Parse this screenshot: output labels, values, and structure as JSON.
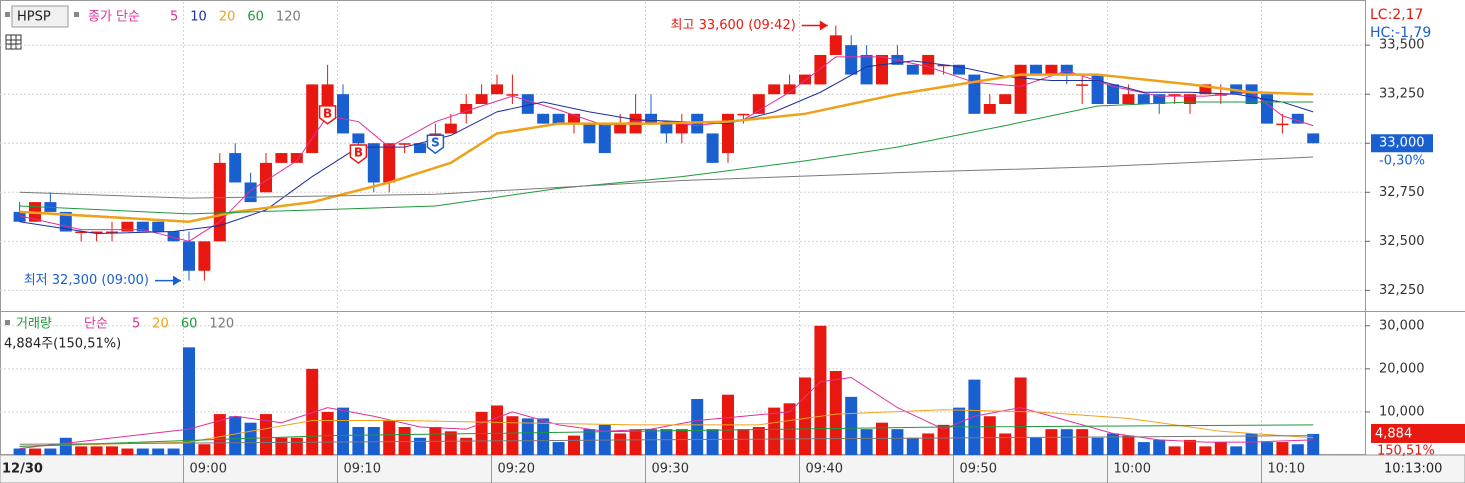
{
  "chart_data": [
    {
      "type": "candlestick",
      "title": "HPSP",
      "indicator": "종가 단순",
      "up_color": "#e8170f",
      "down_color": "#1a5fd0",
      "candles": [
        [
          32650,
          32700,
          32600,
          32600
        ],
        [
          32600,
          32700,
          32600,
          32700
        ],
        [
          32700,
          32750,
          32650,
          32650
        ],
        [
          32650,
          32650,
          32550,
          32550
        ],
        [
          32550,
          32550,
          32500,
          32550
        ],
        [
          32550,
          32550,
          32500,
          32550
        ],
        [
          32550,
          32600,
          32500,
          32550
        ],
        [
          32550,
          32600,
          32550,
          32600
        ],
        [
          32600,
          32600,
          32550,
          32550
        ],
        [
          32600,
          32600,
          32550,
          32550
        ],
        [
          32550,
          32550,
          32500,
          32500
        ],
        [
          32500,
          32550,
          32300,
          32350
        ],
        [
          32350,
          32500,
          32300,
          32500
        ],
        [
          32500,
          32950,
          32500,
          32900
        ],
        [
          32950,
          33000,
          32800,
          32800
        ],
        [
          32800,
          32850,
          32700,
          32700
        ],
        [
          32750,
          32950,
          32750,
          32900
        ],
        [
          32900,
          32950,
          32900,
          32950
        ],
        [
          32900,
          32950,
          32900,
          32950
        ],
        [
          32950,
          33300,
          32950,
          33300
        ],
        [
          33150,
          33400,
          33150,
          33300
        ],
        [
          33250,
          33300,
          33050,
          33050
        ],
        [
          33050,
          33050,
          32950,
          33000
        ],
        [
          33000,
          33000,
          32750,
          32800
        ],
        [
          32800,
          33000,
          32750,
          33000
        ],
        [
          33000,
          33000,
          32950,
          33000
        ],
        [
          33000,
          33000,
          32950,
          32950
        ],
        [
          33000,
          33100,
          33000,
          33050
        ],
        [
          33050,
          33150,
          33050,
          33100
        ],
        [
          33150,
          33250,
          33100,
          33200
        ],
        [
          33200,
          33300,
          33200,
          33250
        ],
        [
          33250,
          33350,
          33250,
          33300
        ],
        [
          33250,
          33350,
          33200,
          33250
        ],
        [
          33250,
          33250,
          33150,
          33150
        ],
        [
          33150,
          33150,
          33100,
          33100
        ],
        [
          33150,
          33150,
          33100,
          33100
        ],
        [
          33100,
          33150,
          33050,
          33150
        ],
        [
          33100,
          33100,
          33000,
          33000
        ],
        [
          33100,
          33100,
          32950,
          32950
        ],
        [
          33050,
          33150,
          33050,
          33100
        ],
        [
          33050,
          33250,
          33050,
          33150
        ],
        [
          33150,
          33250,
          33100,
          33100
        ],
        [
          33100,
          33100,
          33000,
          33050
        ],
        [
          33050,
          33150,
          33000,
          33100
        ],
        [
          33150,
          33150,
          33050,
          33050
        ],
        [
          33050,
          33050,
          32900,
          32900
        ],
        [
          32950,
          33150,
          32900,
          33150
        ],
        [
          33150,
          33150,
          33100,
          33150
        ],
        [
          33150,
          33250,
          33150,
          33250
        ],
        [
          33250,
          33300,
          33250,
          33300
        ],
        [
          33250,
          33350,
          33250,
          33300
        ],
        [
          33300,
          33350,
          33300,
          33350
        ],
        [
          33300,
          33450,
          33300,
          33450
        ],
        [
          33450,
          33600,
          33450,
          33550
        ],
        [
          33500,
          33550,
          33350,
          33350
        ],
        [
          33450,
          33500,
          33300,
          33300
        ],
        [
          33300,
          33450,
          33300,
          33450
        ],
        [
          33450,
          33500,
          33400,
          33400
        ],
        [
          33400,
          33400,
          33350,
          33350
        ],
        [
          33350,
          33450,
          33350,
          33450
        ],
        [
          33400,
          33400,
          33350,
          33400
        ],
        [
          33400,
          33400,
          33350,
          33350
        ],
        [
          33350,
          33350,
          33150,
          33150
        ],
        [
          33150,
          33250,
          33150,
          33200
        ],
        [
          33200,
          33250,
          33200,
          33250
        ],
        [
          33150,
          33400,
          33150,
          33400
        ],
        [
          33400,
          33400,
          33350,
          33350
        ],
        [
          33350,
          33400,
          33350,
          33400
        ],
        [
          33400,
          33400,
          33300,
          33350
        ],
        [
          33300,
          33350,
          33200,
          33300
        ],
        [
          33350,
          33350,
          33200,
          33200
        ],
        [
          33300,
          33300,
          33200,
          33200
        ],
        [
          33200,
          33300,
          33200,
          33250
        ],
        [
          33250,
          33250,
          33200,
          33200
        ],
        [
          33250,
          33250,
          33150,
          33200
        ],
        [
          33250,
          33250,
          33200,
          33250
        ],
        [
          33200,
          33250,
          33150,
          33250
        ],
        [
          33250,
          33300,
          33250,
          33300
        ],
        [
          33250,
          33300,
          33200,
          33250
        ],
        [
          33300,
          33300,
          33250,
          33250
        ],
        [
          33300,
          33300,
          33200,
          33200
        ],
        [
          33250,
          33250,
          33100,
          33100
        ],
        [
          33100,
          33150,
          33050,
          33100
        ],
        [
          33150,
          33150,
          33100,
          33100
        ],
        [
          33050,
          33050,
          33000,
          33000
        ]
      ],
      "ylim": [
        32150,
        33720
      ],
      "yticks": [
        {
          "value": 32250,
          "label": "32,250"
        },
        {
          "value": 32500,
          "label": "32,500"
        },
        {
          "value": 32750,
          "label": "32,750"
        },
        {
          "value": 33000,
          "label": "33,000"
        },
        {
          "value": 33250,
          "label": "33,250"
        },
        {
          "value": 33500,
          "label": "33,500"
        }
      ],
      "xticks": [
        {
          "value": 11,
          "label": "09:00"
        },
        {
          "value": 21,
          "label": "09:10"
        },
        {
          "value": 31,
          "label": "09:20"
        },
        {
          "value": 41,
          "label": "09:30"
        },
        {
          "value": 51,
          "label": "09:40"
        },
        {
          "value": 61,
          "label": "09:50"
        },
        {
          "value": 71,
          "label": "10:00"
        },
        {
          "value": 81,
          "label": "10:10"
        }
      ],
      "series": [
        {
          "name": "5",
          "color": "#e0309a",
          "width": 1,
          "x": [
            0,
            4,
            8,
            11,
            13,
            15,
            18,
            20,
            22,
            24,
            27,
            30,
            32,
            35,
            38,
            41,
            44,
            47,
            50,
            53,
            56,
            59,
            62,
            65,
            68,
            71,
            74,
            77,
            80,
            82,
            84
          ],
          "values": [
            32630,
            32560,
            32560,
            32500,
            32600,
            32760,
            32910,
            33140,
            33110,
            32980,
            33110,
            33190,
            33240,
            33170,
            33090,
            33120,
            33090,
            33120,
            33260,
            33440,
            33440,
            33390,
            33310,
            33290,
            33370,
            33290,
            33240,
            33240,
            33260,
            33140,
            33090
          ]
        },
        {
          "name": "10",
          "color": "#1d2f9e",
          "width": 1,
          "x": [
            0,
            5,
            10,
            13,
            16,
            19,
            22,
            25,
            28,
            31,
            34,
            37,
            40,
            43,
            46,
            49,
            52,
            55,
            58,
            61,
            64,
            67,
            70,
            73,
            76,
            79,
            82,
            84
          ],
          "values": [
            32600,
            32540,
            32550,
            32580,
            32660,
            32830,
            32980,
            32980,
            33040,
            33160,
            33210,
            33160,
            33120,
            33110,
            33100,
            33160,
            33260,
            33390,
            33420,
            33390,
            33340,
            33320,
            33320,
            33260,
            33260,
            33250,
            33210,
            33160
          ]
        },
        {
          "name": "20",
          "color": "#eea21c",
          "width": 2.5,
          "x": [
            0,
            11,
            14,
            19,
            24,
            28,
            31,
            35,
            41,
            46,
            51,
            54,
            57,
            61,
            65,
            70,
            76,
            80,
            84
          ],
          "values": [
            32650,
            32600,
            32650,
            32700,
            32800,
            32900,
            33050,
            33100,
            33100,
            33110,
            33150,
            33200,
            33250,
            33300,
            33350,
            33350,
            33300,
            33260,
            33250
          ]
        },
        {
          "name": "60",
          "color": "#1e9a3a",
          "width": 1,
          "x": [
            0,
            11,
            19,
            27,
            35,
            43,
            51,
            57,
            64,
            70,
            76,
            84
          ],
          "values": [
            32680,
            32640,
            32660,
            32680,
            32770,
            32830,
            32910,
            32980,
            33090,
            33190,
            33210,
            33210
          ]
        },
        {
          "name": "120",
          "color": "#7a7a7a",
          "width": 1,
          "x": [
            0,
            11,
            27,
            43,
            57,
            70,
            84
          ],
          "values": [
            32750,
            32720,
            32740,
            32810,
            32850,
            32880,
            32930
          ]
        }
      ],
      "annotations": [
        {
          "text": "최고 33,600 (09:42)",
          "index": 53,
          "value": 33600,
          "side": "left"
        },
        {
          "text": "최저 32,300 (09:00)",
          "index": 11,
          "value": 32300,
          "side": "left"
        }
      ],
      "signals": [
        {
          "label": "B",
          "index": 20,
          "color": "#e8170f"
        },
        {
          "label": "B",
          "index": 22,
          "color": "#e8170f"
        },
        {
          "label": "S",
          "index": 27,
          "color": "#1a5fd0"
        }
      ],
      "price_label": "33,000",
      "price_value": 33000,
      "change_label": "-0,30%",
      "lc": "LC:2,17",
      "hc": "HC:-1,79"
    },
    {
      "type": "volume-bar",
      "title": "거래량",
      "indicator": "단순",
      "values": [
        1500,
        1500,
        1500,
        4000,
        2000,
        2000,
        2000,
        1500,
        1500,
        1500,
        1500,
        25000,
        2500,
        9500,
        9000,
        7500,
        9500,
        4000,
        4000,
        20000,
        10000,
        11000,
        6500,
        6500,
        8000,
        6500,
        4000,
        6500,
        5500,
        4000,
        10000,
        11500,
        9000,
        8500,
        8500,
        3000,
        4500,
        6000,
        7000,
        5000,
        6000,
        6000,
        6000,
        6000,
        13000,
        6000,
        14000,
        6000,
        6500,
        11000,
        12000,
        18000,
        30000,
        19500,
        13500,
        6000,
        7500,
        6000,
        4000,
        5000,
        7000,
        11000,
        17500,
        9000,
        5000,
        18000,
        4000,
        6000,
        6000,
        6000,
        4000,
        5000,
        4500,
        3000,
        3500,
        2000,
        3500,
        2000,
        3000,
        2000,
        5000,
        3000,
        3000,
        2500,
        4884
      ],
      "ylim": [
        0,
        33200
      ],
      "yticks": [
        {
          "value": 10000,
          "label": "10,000"
        },
        {
          "value": 20000,
          "label": "20,000"
        },
        {
          "value": 30000,
          "label": "30,000"
        }
      ],
      "series": [
        {
          "name": "5",
          "color": "#e0309a",
          "x": [
            0,
            11,
            14,
            17,
            20,
            23,
            26,
            29,
            32,
            35,
            38,
            41,
            44,
            47,
            50,
            52,
            54,
            57,
            60,
            62,
            65,
            68,
            71,
            74,
            77,
            80,
            84
          ],
          "values": [
            1500,
            6000,
            9000,
            7500,
            11000,
            9000,
            6500,
            6000,
            10000,
            7000,
            5500,
            6000,
            8000,
            9000,
            10000,
            17000,
            18000,
            11000,
            6000,
            9000,
            11000,
            8000,
            5000,
            3500,
            3000,
            3000,
            3500
          ]
        },
        {
          "name": "20",
          "color": "#eea21c",
          "x": [
            0,
            11,
            19,
            25,
            32,
            40,
            48,
            53,
            60,
            66,
            72,
            78,
            84
          ],
          "values": [
            2000,
            3000,
            8000,
            8000,
            7500,
            7000,
            7000,
            9500,
            10500,
            10000,
            8500,
            5500,
            4000
          ]
        },
        {
          "name": "60",
          "color": "#1e9a3a",
          "x": [
            0,
            20,
            40,
            60,
            84
          ],
          "values": [
            2000,
            4500,
            5500,
            6500,
            7000
          ]
        },
        {
          "name": "120",
          "color": "#7a7a7a",
          "x": [
            0,
            40,
            84
          ],
          "values": [
            2500,
            3500,
            4500
          ]
        }
      ],
      "summary": "4,884주(150,51%)",
      "value_label": "4,884",
      "ratio_label": "150,51%"
    }
  ],
  "x_axis": {
    "date": "12/30",
    "time": "10:13:00"
  }
}
